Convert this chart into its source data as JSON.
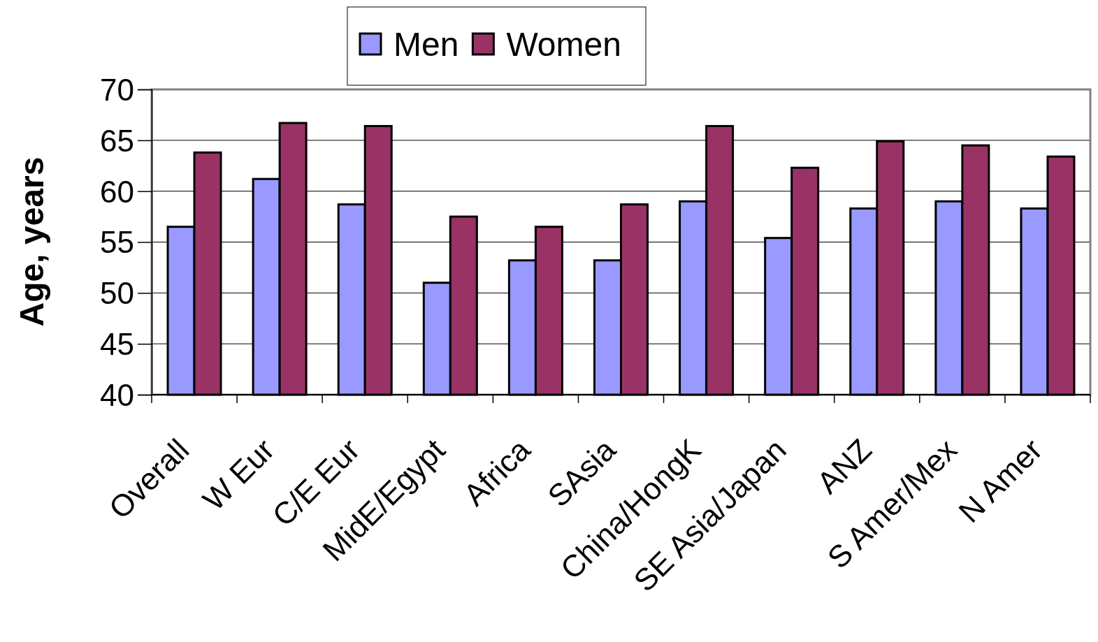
{
  "chart_data": {
    "type": "bar",
    "ylabel": "Age, years",
    "categories": [
      "Overall",
      "W Eur",
      "C/E Eur",
      "MidE/Egypt",
      "Africa",
      "SAsia",
      "China/HongK",
      "SE Asia/Japan",
      "ANZ",
      "S Amer/Mex",
      "N Amer"
    ],
    "series": [
      {
        "name": "Men",
        "color": "#9999ff",
        "values": [
          56.5,
          61.2,
          58.7,
          51.0,
          53.2,
          53.2,
          59.0,
          55.4,
          58.3,
          59.0,
          58.3
        ]
      },
      {
        "name": "Women",
        "color": "#993366",
        "values": [
          63.8,
          66.7,
          66.4,
          57.5,
          56.5,
          58.7,
          66.4,
          62.3,
          64.9,
          64.5,
          63.4
        ]
      }
    ],
    "ylim": [
      40,
      70
    ],
    "yticks": [
      40,
      45,
      50,
      55,
      60,
      65,
      70
    ],
    "grid": "y",
    "legend": "top"
  }
}
